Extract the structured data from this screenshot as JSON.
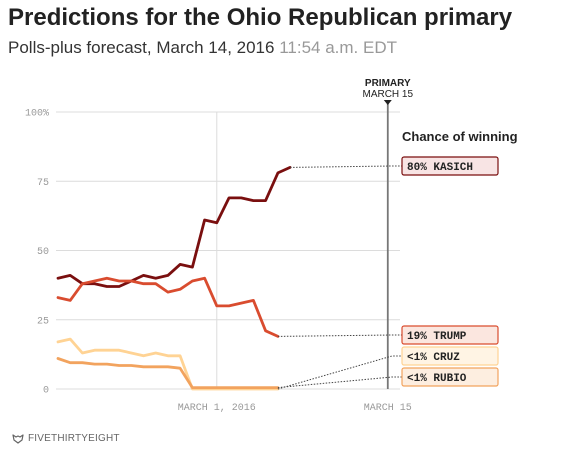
{
  "header": {
    "title": "Predictions for the Ohio Republican primary",
    "subtitle": "Polls-plus forecast, March 14, 2016",
    "timestamp": "11:54 a.m. EDT"
  },
  "footer": {
    "brand": "FIVETHIRTYEIGHT",
    "logo_icon": "fivethirtyeight-fox-icon"
  },
  "chart_data": {
    "type": "line",
    "title": "Predictions for the Ohio Republican primary",
    "subtitle": "Polls-plus forecast, March 14, 2016 11:54 a.m. EDT",
    "xlabel": "",
    "ylabel": "",
    "xlim": [
      "2016-02-17",
      "2016-03-16"
    ],
    "ylim": [
      0,
      100
    ],
    "x_ticks": [
      {
        "label": "MARCH 1, 2016",
        "date": "2016-03-01"
      },
      {
        "label": "MARCH 15",
        "date": "2016-03-15"
      }
    ],
    "y_ticks": [
      {
        "label": "100%",
        "value": 100
      },
      {
        "label": "75",
        "value": 75
      },
      {
        "label": "50",
        "value": 50
      },
      {
        "label": "25",
        "value": 25
      },
      {
        "label": "0",
        "value": 0
      }
    ],
    "grid": true,
    "event_marker": {
      "label_line1": "PRIMARY",
      "label_line2": "MARCH 15",
      "date": "2016-03-15"
    },
    "end_labels_heading": "Chance of winning",
    "x": [
      "2016-02-17",
      "2016-02-18",
      "2016-02-19",
      "2016-02-20",
      "2016-02-21",
      "2016-02-22",
      "2016-02-23",
      "2016-02-24",
      "2016-02-25",
      "2016-02-26",
      "2016-02-27",
      "2016-02-28",
      "2016-02-29",
      "2016-03-01",
      "2016-03-02",
      "2016-03-03",
      "2016-03-04",
      "2016-03-05",
      "2016-03-06",
      "2016-03-07",
      "2016-03-08",
      "2016-03-09",
      "2016-03-10",
      "2016-03-11",
      "2016-03-12",
      "2016-03-13",
      "2016-03-14"
    ],
    "series": [
      {
        "name": "KASICH",
        "end_label": "80% KASICH",
        "color": "#7a0f0f",
        "label_bg": "#f8e4e4",
        "values": [
          40,
          41,
          38,
          38,
          37,
          37,
          39,
          41,
          40,
          41,
          45,
          44,
          61,
          60,
          69,
          69,
          68,
          68,
          78,
          80,
          null,
          null,
          null,
          null,
          null,
          null,
          null
        ]
      },
      {
        "name": "TRUMP",
        "end_label": "19% TRUMP",
        "color": "#d94c2f",
        "label_bg": "#fbe6df",
        "values": [
          33,
          32,
          38,
          39,
          40,
          39,
          39,
          38,
          38,
          35,
          36,
          39,
          40,
          30,
          30,
          31,
          32,
          21,
          19,
          null,
          null,
          null,
          null,
          null,
          null,
          null,
          null
        ]
      },
      {
        "name": "CRUZ",
        "end_label": "<1% CRUZ",
        "color": "#ffd394",
        "label_bg": "#fff4e4",
        "values": [
          17,
          18,
          13,
          14,
          14,
          14,
          13,
          12,
          13,
          12,
          12,
          0,
          0,
          0,
          0,
          0,
          0,
          0,
          0,
          null,
          null,
          null,
          null,
          null,
          null,
          null,
          null
        ]
      },
      {
        "name": "RUBIO",
        "end_label": "<1% RUBIO",
        "color": "#f2a35e",
        "label_bg": "#fdeee0",
        "values": [
          11,
          9.5,
          9.5,
          9,
          9,
          8.5,
          8.5,
          8,
          8,
          8,
          7.5,
          0.5,
          0.5,
          0.5,
          0.5,
          0.5,
          0.5,
          0.5,
          0.5,
          null,
          null,
          null,
          null,
          null,
          null,
          null,
          null
        ]
      }
    ]
  }
}
